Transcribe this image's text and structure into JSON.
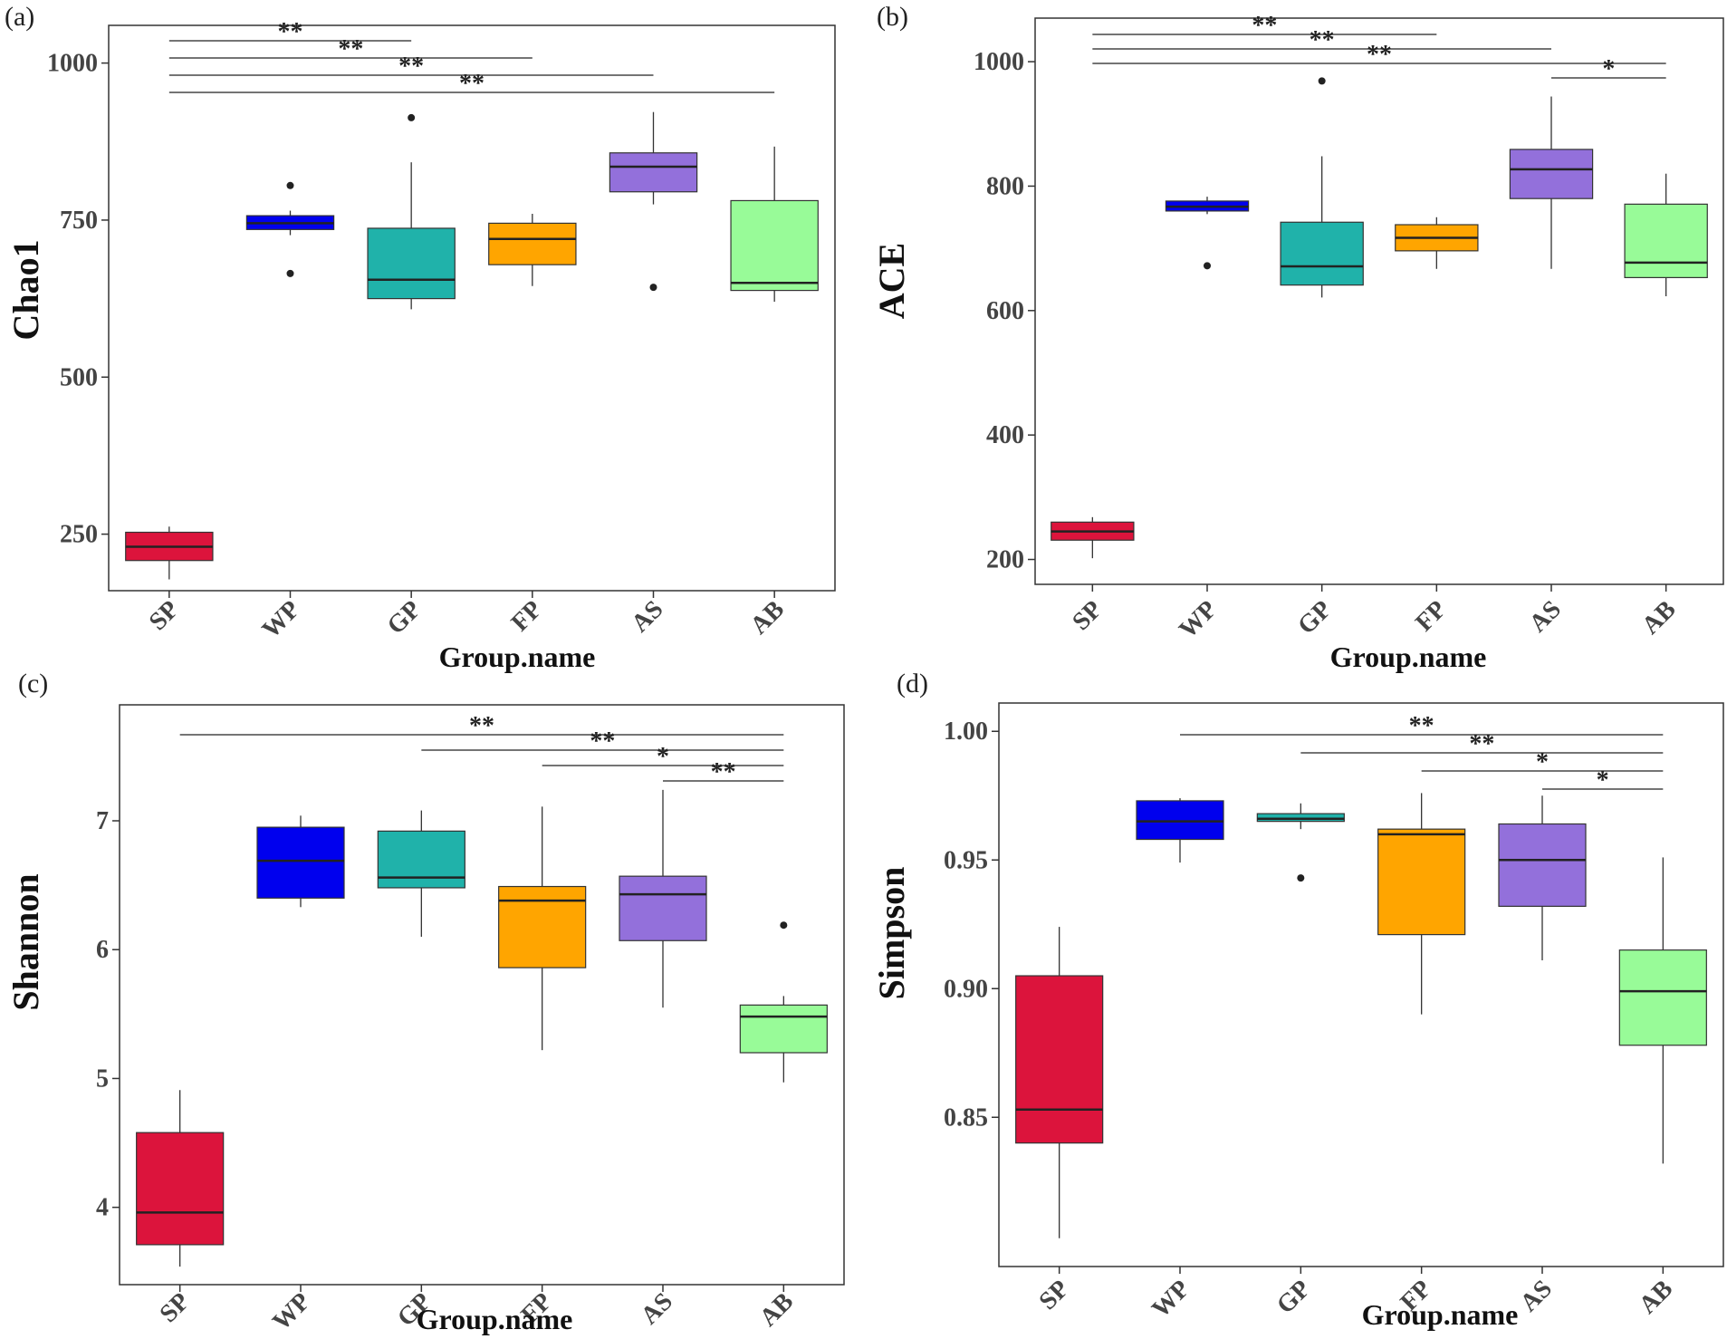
{
  "chart_data": [
    {
      "type": "box",
      "panel_label": "(a)",
      "xlabel": "Group.name",
      "ylabel": "Chao1",
      "ylim": [
        160,
        1060
      ],
      "yticks": [
        250,
        500,
        750,
        1000
      ],
      "categories": [
        "SP",
        "WP",
        "GP",
        "FP",
        "AS",
        "AB"
      ],
      "colors": [
        "#dc143c",
        "#0000ee",
        "#20b2aa",
        "#ffa500",
        "#9370db",
        "#98fb98"
      ],
      "boxes": [
        {
          "q1": 208,
          "median": 230,
          "q3": 253,
          "whisker_low": 178,
          "whisker_high": 262,
          "outliers": []
        },
        {
          "q1": 735,
          "median": 745,
          "q3": 757,
          "whisker_low": 726,
          "whisker_high": 765,
          "outliers": [
            805,
            665
          ]
        },
        {
          "q1": 625,
          "median": 655,
          "q3": 737,
          "whisker_low": 608,
          "whisker_high": 842,
          "outliers": [
            913
          ]
        },
        {
          "q1": 679,
          "median": 720,
          "q3": 745,
          "whisker_low": 645,
          "whisker_high": 760,
          "outliers": []
        },
        {
          "q1": 795,
          "median": 835,
          "q3": 857,
          "whisker_low": 775,
          "whisker_high": 922,
          "outliers": [
            643
          ]
        },
        {
          "q1": 638,
          "median": 650,
          "q3": 781,
          "whisker_low": 620,
          "whisker_high": 867,
          "outliers": []
        }
      ],
      "significance": [
        {
          "from": "SP",
          "to": "GP",
          "label": "**"
        },
        {
          "from": "SP",
          "to": "FP",
          "label": "**"
        },
        {
          "from": "SP",
          "to": "AS",
          "label": "**"
        },
        {
          "from": "SP",
          "to": "AB",
          "label": "**"
        }
      ]
    },
    {
      "type": "box",
      "panel_label": "(b)",
      "xlabel": "Group.name",
      "ylabel": "ACE",
      "ylim": [
        160,
        1070
      ],
      "yticks": [
        200,
        400,
        600,
        800,
        1000
      ],
      "categories": [
        "SP",
        "WP",
        "GP",
        "FP",
        "AS",
        "AB"
      ],
      "colors": [
        "#dc143c",
        "#0000ee",
        "#20b2aa",
        "#ffa500",
        "#9370db",
        "#98fb98"
      ],
      "boxes": [
        {
          "q1": 231,
          "median": 245,
          "q3": 260,
          "whisker_low": 202,
          "whisker_high": 268,
          "outliers": []
        },
        {
          "q1": 760,
          "median": 767,
          "q3": 776,
          "whisker_low": 755,
          "whisker_high": 783,
          "outliers": [
            672
          ]
        },
        {
          "q1": 641,
          "median": 671,
          "q3": 742,
          "whisker_low": 621,
          "whisker_high": 848,
          "outliers": [
            969
          ]
        },
        {
          "q1": 696,
          "median": 717,
          "q3": 738,
          "whisker_low": 667,
          "whisker_high": 750,
          "outliers": []
        },
        {
          "q1": 780,
          "median": 827,
          "q3": 859,
          "whisker_low": 667,
          "whisker_high": 944,
          "outliers": []
        },
        {
          "q1": 653,
          "median": 677,
          "q3": 771,
          "whisker_low": 623,
          "whisker_high": 820,
          "outliers": []
        }
      ],
      "significance": [
        {
          "from": "SP",
          "to": "FP",
          "label": "**"
        },
        {
          "from": "SP",
          "to": "AS",
          "label": "**"
        },
        {
          "from": "SP",
          "to": "AB",
          "label": "**"
        },
        {
          "from": "AS",
          "to": "AB",
          "label": "*"
        }
      ]
    },
    {
      "type": "box",
      "panel_label": "(c)",
      "xlabel": "Group.name",
      "ylabel": "Shannon",
      "ylim": [
        3.4,
        7.9
      ],
      "yticks": [
        4,
        5,
        6,
        7
      ],
      "categories": [
        "SP",
        "WP",
        "GP",
        "FP",
        "AS",
        "AB"
      ],
      "colors": [
        "#dc143c",
        "#0000ee",
        "#20b2aa",
        "#ffa500",
        "#9370db",
        "#98fb98"
      ],
      "boxes": [
        {
          "q1": 3.71,
          "median": 3.96,
          "q3": 4.58,
          "whisker_low": 3.54,
          "whisker_high": 4.91,
          "outliers": []
        },
        {
          "q1": 6.4,
          "median": 6.69,
          "q3": 6.95,
          "whisker_low": 6.33,
          "whisker_high": 7.04,
          "outliers": []
        },
        {
          "q1": 6.48,
          "median": 6.56,
          "q3": 6.92,
          "whisker_low": 6.1,
          "whisker_high": 7.08,
          "outliers": []
        },
        {
          "q1": 5.86,
          "median": 6.38,
          "q3": 6.49,
          "whisker_low": 5.22,
          "whisker_high": 7.11,
          "outliers": []
        },
        {
          "q1": 6.07,
          "median": 6.43,
          "q3": 6.57,
          "whisker_low": 5.55,
          "whisker_high": 7.24,
          "outliers": []
        },
        {
          "q1": 5.2,
          "median": 5.48,
          "q3": 5.57,
          "whisker_low": 4.97,
          "whisker_high": 5.64,
          "outliers": [
            6.19
          ]
        }
      ],
      "significance": [
        {
          "from": "SP",
          "to": "AB",
          "label": "**"
        },
        {
          "from": "GP",
          "to": "AB",
          "label": "**"
        },
        {
          "from": "FP",
          "to": "AB",
          "label": "*"
        },
        {
          "from": "AS",
          "to": "AB",
          "label": "**"
        }
      ]
    },
    {
      "type": "box",
      "panel_label": "(d)",
      "xlabel": "Group.name",
      "ylabel": "Simpson",
      "ylim": [
        0.792,
        1.011
      ],
      "yticks": [
        0.85,
        0.9,
        0.95,
        1.0
      ],
      "ytick_labels": [
        "0.85",
        "0.90",
        "0.95",
        "1.00"
      ],
      "categories": [
        "SP",
        "WP",
        "GP",
        "FP",
        "AS",
        "AB"
      ],
      "colors": [
        "#dc143c",
        "#0000ee",
        "#20b2aa",
        "#ffa500",
        "#9370db",
        "#98fb98"
      ],
      "boxes": [
        {
          "q1": 0.84,
          "median": 0.853,
          "q3": 0.905,
          "whisker_low": 0.803,
          "whisker_high": 0.924,
          "outliers": []
        },
        {
          "q1": 0.958,
          "median": 0.965,
          "q3": 0.973,
          "whisker_low": 0.949,
          "whisker_high": 0.974,
          "outliers": []
        },
        {
          "q1": 0.965,
          "median": 0.966,
          "q3": 0.968,
          "whisker_low": 0.962,
          "whisker_high": 0.972,
          "outliers": [
            0.943
          ]
        },
        {
          "q1": 0.921,
          "median": 0.96,
          "q3": 0.962,
          "whisker_low": 0.89,
          "whisker_high": 0.976,
          "outliers": []
        },
        {
          "q1": 0.932,
          "median": 0.95,
          "q3": 0.964,
          "whisker_low": 0.911,
          "whisker_high": 0.975,
          "outliers": []
        },
        {
          "q1": 0.878,
          "median": 0.899,
          "q3": 0.915,
          "whisker_low": 0.832,
          "whisker_high": 0.951,
          "outliers": []
        }
      ],
      "significance": [
        {
          "from": "WP",
          "to": "AB",
          "label": "**"
        },
        {
          "from": "GP",
          "to": "AB",
          "label": "**"
        },
        {
          "from": "FP",
          "to": "AB",
          "label": "*"
        },
        {
          "from": "AS",
          "to": "AB",
          "label": "*"
        }
      ]
    }
  ]
}
